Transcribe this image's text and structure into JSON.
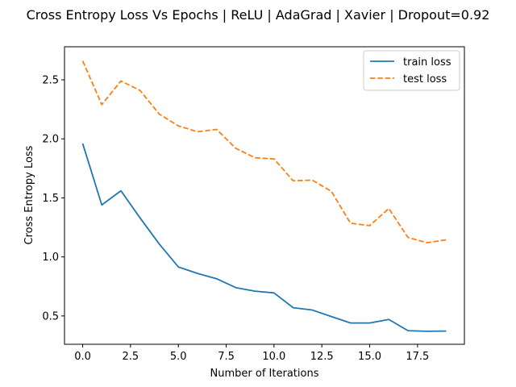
{
  "chart_data": {
    "type": "line",
    "title": "Cross Entropy Loss Vs Epochs | ReLU | AdaGrad | Xavier | Dropout=0.92",
    "xlabel": "Number of Iterations",
    "ylabel": "Cross Entropy Loss",
    "xlim": [
      -0.95,
      19.95
    ],
    "ylim": [
      0.26,
      2.78
    ],
    "xticks": [
      0,
      2.5,
      5,
      7.5,
      10,
      12.5,
      15,
      17.5
    ],
    "xtick_labels": [
      "0.0",
      "2.5",
      "5.0",
      "7.5",
      "10.0",
      "12.5",
      "15.0",
      "17.5"
    ],
    "yticks": [
      0.5,
      1.0,
      1.5,
      2.0,
      2.5
    ],
    "ytick_labels": [
      "0.5",
      "1.0",
      "1.5",
      "2.0",
      "2.5"
    ],
    "grid": false,
    "legend": "top-right",
    "x": [
      0,
      1,
      2,
      3,
      4,
      5,
      6,
      7,
      8,
      9,
      10,
      11,
      12,
      13,
      14,
      15,
      16,
      17,
      18,
      19
    ],
    "series": [
      {
        "name": "train loss",
        "color": "#1f77b4",
        "style": "solid",
        "values": [
          1.96,
          1.44,
          1.56,
          1.33,
          1.11,
          0.915,
          0.86,
          0.815,
          0.74,
          0.71,
          0.695,
          0.57,
          0.55,
          0.495,
          0.44,
          0.44,
          0.47,
          0.375,
          0.37,
          0.372
        ]
      },
      {
        "name": "test loss",
        "color": "#ff7f0e",
        "style": "dashed",
        "values": [
          2.66,
          2.29,
          2.49,
          2.41,
          2.21,
          2.11,
          2.06,
          2.08,
          1.92,
          1.84,
          1.83,
          1.645,
          1.65,
          1.555,
          1.285,
          1.265,
          1.41,
          1.165,
          1.12,
          1.145
        ]
      }
    ]
  }
}
